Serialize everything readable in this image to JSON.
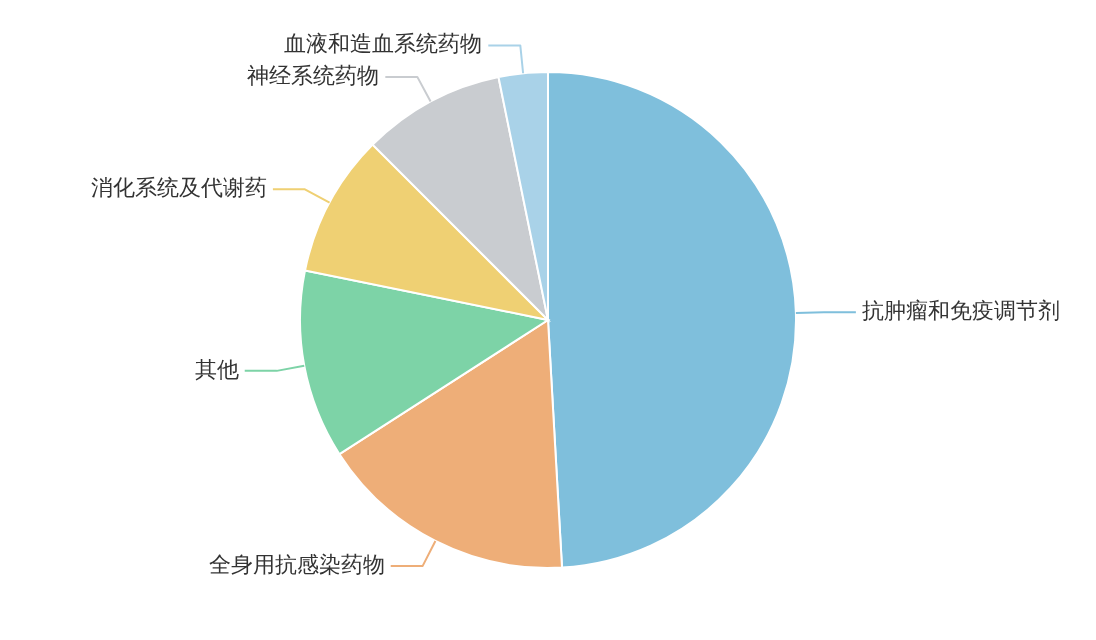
{
  "chart_data": {
    "type": "pie",
    "categories": [
      "抗肿瘤和免疫调节剂",
      "全身用抗感染药物",
      "其他",
      "消化系统及代谢药",
      "神经系统药物",
      "血液和造血系统药物"
    ],
    "values": [
      49.1,
      16.8,
      12.3,
      9.3,
      9.3,
      3.2
    ],
    "colors": [
      "#7fbfdc",
      "#eeae78",
      "#7dd3a7",
      "#efd073",
      "#c9ccd0",
      "#a9d2e8"
    ]
  }
}
